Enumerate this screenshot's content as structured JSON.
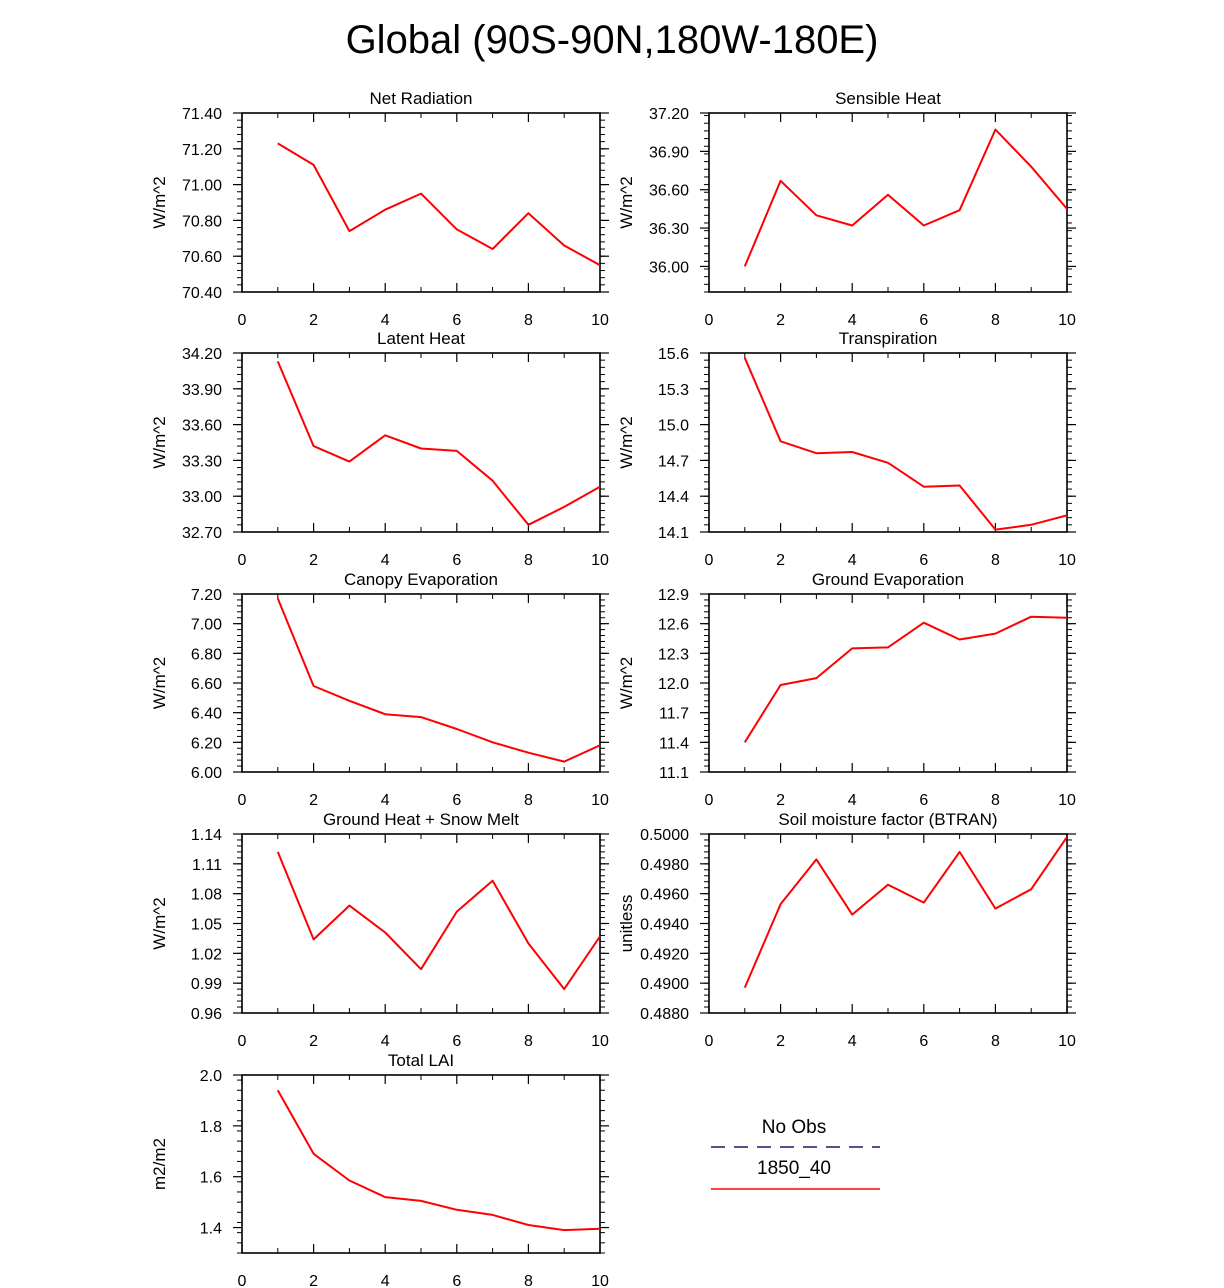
{
  "title": "Global (90S-90N,180W-180E)",
  "colors": {
    "series": "#ff0000",
    "axis": "#000000",
    "obs": "#1a1a66"
  },
  "legend": {
    "obs_label": "No Obs",
    "case_label": "1850_40"
  },
  "chart_data": [
    {
      "type": "line",
      "title": "Net Radiation",
      "ylabel": "W/m^2",
      "xlim": [
        0,
        10
      ],
      "ylim": [
        70.4,
        71.4
      ],
      "xticks": [
        0,
        2,
        4,
        6,
        8,
        10
      ],
      "xtick_labels": [
        "0",
        "2",
        "4",
        "6",
        "8",
        "10"
      ],
      "yticks": [
        70.4,
        70.6,
        70.8,
        71.0,
        71.2,
        71.4
      ],
      "ytick_labels": [
        "70.40",
        "70.60",
        "70.80",
        "71.00",
        "71.20",
        "71.40"
      ],
      "x": [
        1,
        2,
        3,
        4,
        5,
        6,
        7,
        8,
        9,
        10
      ],
      "y": [
        71.23,
        71.11,
        70.74,
        70.86,
        70.95,
        70.75,
        70.64,
        70.84,
        70.66,
        70.55
      ]
    },
    {
      "type": "line",
      "title": "Sensible Heat",
      "ylabel": "W/m^2",
      "xlim": [
        0,
        10
      ],
      "ylim": [
        35.8,
        37.2
      ],
      "xticks": [
        0,
        2,
        4,
        6,
        8,
        10
      ],
      "xtick_labels": [
        "0",
        "2",
        "4",
        "6",
        "8",
        "10"
      ],
      "yticks": [
        36.0,
        36.3,
        36.6,
        36.9,
        37.2
      ],
      "ytick_labels": [
        "36.00",
        "36.30",
        "36.60",
        "36.90",
        "37.20"
      ],
      "x": [
        1,
        2,
        3,
        4,
        5,
        6,
        7,
        8,
        9,
        10
      ],
      "y": [
        36.0,
        36.67,
        36.4,
        36.32,
        36.56,
        36.32,
        36.44,
        37.07,
        36.78,
        36.45
      ]
    },
    {
      "type": "line",
      "title": "Latent Heat",
      "ylabel": "W/m^2",
      "xlim": [
        0,
        10
      ],
      "ylim": [
        32.7,
        34.2
      ],
      "xticks": [
        0,
        2,
        4,
        6,
        8,
        10
      ],
      "xtick_labels": [
        "0",
        "2",
        "4",
        "6",
        "8",
        "10"
      ],
      "yticks": [
        32.7,
        33.0,
        33.3,
        33.6,
        33.9,
        34.2
      ],
      "ytick_labels": [
        "32.70",
        "33.00",
        "33.30",
        "33.60",
        "33.90",
        "34.20"
      ],
      "x": [
        1,
        2,
        3,
        4,
        5,
        6,
        7,
        8,
        9,
        10
      ],
      "y": [
        34.13,
        33.42,
        33.29,
        33.51,
        33.4,
        33.38,
        33.13,
        32.76,
        32.91,
        33.08
      ]
    },
    {
      "type": "line",
      "title": "Transpiration",
      "ylabel": "W/m^2",
      "xlim": [
        0,
        10
      ],
      "ylim": [
        14.1,
        15.6
      ],
      "xticks": [
        0,
        2,
        4,
        6,
        8,
        10
      ],
      "xtick_labels": [
        "0",
        "2",
        "4",
        "6",
        "8",
        "10"
      ],
      "yticks": [
        14.1,
        14.4,
        14.7,
        15.0,
        15.3,
        15.6
      ],
      "ytick_labels": [
        "14.1",
        "14.4",
        "14.7",
        "15.0",
        "15.3",
        "15.6"
      ],
      "x": [
        1,
        2,
        3,
        4,
        5,
        6,
        7,
        8,
        9,
        10
      ],
      "y": [
        15.56,
        14.86,
        14.76,
        14.77,
        14.68,
        14.48,
        14.49,
        14.12,
        14.16,
        14.24
      ]
    },
    {
      "type": "line",
      "title": "Canopy Evaporation",
      "ylabel": "W/m^2",
      "xlim": [
        0,
        10
      ],
      "ylim": [
        6.0,
        7.2
      ],
      "xticks": [
        0,
        2,
        4,
        6,
        8,
        10
      ],
      "xtick_labels": [
        "0",
        "2",
        "4",
        "6",
        "8",
        "10"
      ],
      "yticks": [
        6.0,
        6.2,
        6.4,
        6.6,
        6.8,
        7.0,
        7.2
      ],
      "ytick_labels": [
        "6.00",
        "6.20",
        "6.40",
        "6.60",
        "6.80",
        "7.00",
        "7.20"
      ],
      "x": [
        1,
        2,
        3,
        4,
        5,
        6,
        7,
        8,
        9,
        10
      ],
      "y": [
        7.17,
        6.58,
        6.48,
        6.39,
        6.37,
        6.29,
        6.2,
        6.13,
        6.07,
        6.18
      ]
    },
    {
      "type": "line",
      "title": "Ground Evaporation",
      "ylabel": "W/m^2",
      "xlim": [
        0,
        10
      ],
      "ylim": [
        11.1,
        12.9
      ],
      "xticks": [
        0,
        2,
        4,
        6,
        8,
        10
      ],
      "xtick_labels": [
        "0",
        "2",
        "4",
        "6",
        "8",
        "10"
      ],
      "yticks": [
        11.1,
        11.4,
        11.7,
        12.0,
        12.3,
        12.6,
        12.9
      ],
      "ytick_labels": [
        "11.1",
        "11.4",
        "11.7",
        "12.0",
        "12.3",
        "12.6",
        "12.9"
      ],
      "x": [
        1,
        2,
        3,
        4,
        5,
        6,
        7,
        8,
        9,
        10
      ],
      "y": [
        11.4,
        11.98,
        12.05,
        12.35,
        12.36,
        12.61,
        12.44,
        12.5,
        12.67,
        12.66
      ]
    },
    {
      "type": "line",
      "title": "Ground Heat + Snow Melt",
      "ylabel": "W/m^2",
      "xlim": [
        0,
        10
      ],
      "ylim": [
        0.96,
        1.14
      ],
      "xticks": [
        0,
        2,
        4,
        6,
        8,
        10
      ],
      "xtick_labels": [
        "0",
        "2",
        "4",
        "6",
        "8",
        "10"
      ],
      "yticks": [
        0.96,
        0.99,
        1.02,
        1.05,
        1.08,
        1.11,
        1.14
      ],
      "ytick_labels": [
        "0.96",
        "0.99",
        "1.02",
        "1.05",
        "1.08",
        "1.11",
        "1.14"
      ],
      "x": [
        1,
        2,
        3,
        4,
        5,
        6,
        7,
        8,
        9,
        10
      ],
      "y": [
        1.122,
        1.034,
        1.068,
        1.041,
        1.004,
        1.062,
        1.093,
        1.03,
        0.984,
        1.037
      ]
    },
    {
      "type": "line",
      "title": "Soil moisture factor (BTRAN)",
      "ylabel": "unitless",
      "xlim": [
        0,
        10
      ],
      "ylim": [
        0.488,
        0.5
      ],
      "xticks": [
        0,
        2,
        4,
        6,
        8,
        10
      ],
      "xtick_labels": [
        "0",
        "2",
        "4",
        "6",
        "8",
        "10"
      ],
      "yticks": [
        0.488,
        0.49,
        0.492,
        0.494,
        0.496,
        0.498,
        0.5
      ],
      "ytick_labels": [
        "0.4880",
        "0.4900",
        "0.4920",
        "0.4940",
        "0.4960",
        "0.4980",
        "0.5000"
      ],
      "x": [
        1,
        2,
        3,
        4,
        5,
        6,
        7,
        8,
        9,
        10
      ],
      "y": [
        0.4897,
        0.4953,
        0.4983,
        0.4946,
        0.4966,
        0.4954,
        0.4988,
        0.495,
        0.4963,
        0.4998
      ]
    },
    {
      "type": "line",
      "title": "Total LAI",
      "ylabel": "m2/m2",
      "xlim": [
        0,
        10
      ],
      "ylim": [
        1.3,
        2.0
      ],
      "xticks": [
        0,
        2,
        4,
        6,
        8,
        10
      ],
      "xtick_labels": [
        "0",
        "2",
        "4",
        "6",
        "8",
        "10"
      ],
      "yticks": [
        1.4,
        1.6,
        1.8,
        2.0
      ],
      "ytick_labels": [
        "1.4",
        "1.6",
        "1.8",
        "2.0"
      ],
      "x": [
        1,
        2,
        3,
        4,
        5,
        6,
        7,
        8,
        9,
        10
      ],
      "y": [
        1.94,
        1.69,
        1.585,
        1.52,
        1.505,
        1.47,
        1.45,
        1.41,
        1.39,
        1.395
      ]
    }
  ]
}
